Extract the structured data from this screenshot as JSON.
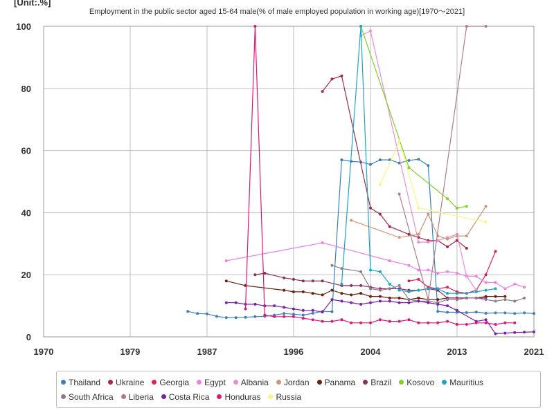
{
  "unit_label": "[Unit:.%]",
  "title": "Employment in the public sector aged 15-64 male(% of male employed population in working age)[1970～2021]",
  "chart_data": {
    "type": "line",
    "title": "Employment in the public sector aged 15-64 male(% of male employed population in working age)[1970～2021]",
    "unit": "[Unit:.%]",
    "xlim": [
      1970,
      2021
    ],
    "ylim": [
      0,
      100
    ],
    "x_ticks": [
      1970,
      1979,
      1987,
      1996,
      2004,
      2013,
      2021
    ],
    "y_ticks": [
      0,
      20,
      40,
      60,
      80,
      100
    ],
    "grid": true,
    "legend_position": "bottom",
    "series": [
      {
        "name": "Thailand",
        "color": "#3d7fba",
        "points": [
          [
            1985,
            8.2
          ],
          [
            1986,
            7.5
          ],
          [
            1987,
            7.4
          ],
          [
            1988,
            6.6
          ],
          [
            1989,
            6.2
          ],
          [
            1990,
            6.2
          ],
          [
            1991,
            6.3
          ],
          [
            1992,
            6.5
          ],
          [
            1993,
            6.6
          ],
          [
            1994,
            7.0
          ],
          [
            1995,
            7.5
          ],
          [
            1996,
            7.3
          ],
          [
            1997,
            7.0
          ],
          [
            1998,
            7.6
          ],
          [
            1999,
            8.2
          ],
          [
            2000,
            8.1
          ],
          [
            2001,
            57.0
          ],
          [
            2002,
            56.5
          ],
          [
            2003,
            56.3
          ],
          [
            2004,
            55.5
          ],
          [
            2005,
            57.0
          ],
          [
            2006,
            57.0
          ],
          [
            2007,
            56.0
          ],
          [
            2008,
            56.8
          ],
          [
            2009,
            57.2
          ],
          [
            2010,
            55.2
          ],
          [
            2011,
            8.2
          ],
          [
            2012,
            7.9
          ],
          [
            2013,
            7.9
          ],
          [
            2014,
            7.8
          ],
          [
            2015,
            8.0
          ],
          [
            2016,
            7.6
          ],
          [
            2017,
            7.7
          ],
          [
            2018,
            7.7
          ],
          [
            2019,
            7.5
          ],
          [
            2020,
            7.7
          ],
          [
            2021,
            7.5
          ]
        ]
      },
      {
        "name": "Ukraine",
        "color": "#9e2a4a",
        "points": [
          [
            1999,
            79.0
          ],
          [
            2000,
            83.0
          ],
          [
            2001,
            84.0
          ],
          [
            2004,
            41.5
          ],
          [
            2005,
            39.5
          ],
          [
            2006,
            35.5
          ],
          [
            2008,
            33.0
          ],
          [
            2009,
            32.0
          ],
          [
            2010,
            31.0
          ],
          [
            2011,
            31.0
          ],
          [
            2012,
            29.0
          ],
          [
            2013,
            31.0
          ],
          [
            2014,
            28.5
          ]
        ]
      },
      {
        "name": "Georgia",
        "color": "#e0214e",
        "points": [
          [
            2008,
            18.0
          ],
          [
            2009,
            18.5
          ],
          [
            2010,
            16.0
          ],
          [
            2011,
            15.5
          ],
          [
            2012,
            16.0
          ],
          [
            2013,
            14.5
          ],
          [
            2014,
            14.0
          ],
          [
            2015,
            15.0
          ],
          [
            2016,
            20.0
          ],
          [
            2017,
            27.5
          ]
        ]
      },
      {
        "name": "Egypt",
        "color": "#f07ee8",
        "points": [
          [
            1989,
            24.5
          ],
          [
            1999,
            30.3
          ],
          [
            2006,
            24.5
          ],
          [
            2008,
            23.0
          ],
          [
            2009,
            21.5
          ],
          [
            2010,
            21.5
          ],
          [
            2011,
            20.5
          ],
          [
            2012,
            21.0
          ],
          [
            2013,
            20.5
          ],
          [
            2014,
            19.5
          ],
          [
            2015,
            19.5
          ],
          [
            2016,
            17.5
          ],
          [
            2017,
            17.5
          ],
          [
            2018,
            15.5
          ],
          [
            2019,
            17.0
          ],
          [
            2020,
            16.0
          ]
        ]
      },
      {
        "name": "Albania",
        "color": "#e88ed0",
        "points": [
          [
            2003,
            97.0
          ],
          [
            2004,
            98.5
          ],
          [
            2009,
            30.5
          ],
          [
            2010,
            30.5
          ],
          [
            2011,
            31.0
          ],
          [
            2012,
            32.0
          ],
          [
            2013,
            33.0
          ],
          [
            2014,
            19.5
          ],
          [
            2015,
            15.0
          ]
        ]
      },
      {
        "name": "Jordan",
        "color": "#d39470",
        "points": [
          [
            2002,
            37.5
          ],
          [
            2007,
            32.0
          ],
          [
            2009,
            33.0
          ],
          [
            2010,
            39.5
          ],
          [
            2011,
            32.5
          ],
          [
            2012,
            31.5
          ],
          [
            2013,
            32.5
          ],
          [
            2014,
            32.5
          ],
          [
            2016,
            42.0
          ]
        ]
      },
      {
        "name": "Panama",
        "color": "#6b1f10",
        "points": [
          [
            1989,
            18.0
          ],
          [
            1991,
            16.5
          ],
          [
            1995,
            15.0
          ],
          [
            1996,
            14.5
          ],
          [
            1997,
            14.5
          ],
          [
            1998,
            14.0
          ],
          [
            1999,
            13.5
          ],
          [
            2000,
            15.0
          ],
          [
            2001,
            14.0
          ],
          [
            2002,
            13.5
          ],
          [
            2003,
            14.0
          ],
          [
            2004,
            13.0
          ],
          [
            2005,
            13.0
          ],
          [
            2006,
            12.5
          ],
          [
            2007,
            12.5
          ],
          [
            2008,
            12.0
          ],
          [
            2009,
            12.5
          ],
          [
            2010,
            12.0
          ],
          [
            2011,
            12.0
          ],
          [
            2012,
            12.5
          ],
          [
            2013,
            12.5
          ],
          [
            2014,
            12.5
          ],
          [
            2015,
            12.5
          ],
          [
            2016,
            13.0
          ],
          [
            2017,
            13.0
          ],
          [
            2018,
            13.0
          ]
        ]
      },
      {
        "name": "Brazil",
        "color": "#8a2e5a",
        "points": [
          [
            1992,
            20.0
          ],
          [
            1993,
            20.5
          ],
          [
            1995,
            19.0
          ],
          [
            1996,
            18.5
          ],
          [
            1997,
            18.0
          ],
          [
            1998,
            18.0
          ],
          [
            1999,
            18.0
          ],
          [
            2001,
            16.5
          ],
          [
            2002,
            16.5
          ],
          [
            2003,
            16.5
          ],
          [
            2004,
            16.0
          ],
          [
            2005,
            15.5
          ],
          [
            2006,
            15.5
          ],
          [
            2007,
            15.5
          ],
          [
            2008,
            15.0
          ],
          [
            2009,
            15.0
          ],
          [
            2010,
            15.5
          ],
          [
            2011,
            15.0
          ],
          [
            2012,
            12.5
          ],
          [
            2013,
            12.5
          ],
          [
            2014,
            12.5
          ],
          [
            2015,
            12.5
          ],
          [
            2016,
            12.5
          ]
        ]
      },
      {
        "name": "Kosovo",
        "color": "#7ed321",
        "points": [
          [
            2003,
            100.0
          ],
          [
            2008,
            54.5
          ],
          [
            2012,
            44.5
          ],
          [
            2013,
            41.5
          ],
          [
            2014,
            42.0
          ]
        ]
      },
      {
        "name": "Mauritius",
        "color": "#1aa5c8",
        "points": [
          [
            2001,
            17.0
          ],
          [
            2003,
            100.0
          ],
          [
            2004,
            21.5
          ],
          [
            2005,
            21.0
          ],
          [
            2006,
            17.0
          ],
          [
            2007,
            15.0
          ],
          [
            2008,
            14.5
          ],
          [
            2009,
            15.0
          ],
          [
            2010,
            15.5
          ],
          [
            2011,
            15.5
          ],
          [
            2012,
            14.0
          ],
          [
            2013,
            14.0
          ],
          [
            2014,
            14.0
          ],
          [
            2015,
            14.5
          ],
          [
            2016,
            15.0
          ],
          [
            2017,
            15.5
          ]
        ]
      },
      {
        "name": "South Africa",
        "color": "#8c7a92",
        "points": [
          [
            2000,
            23.0
          ],
          [
            2001,
            22.0
          ],
          [
            2003,
            21.0
          ],
          [
            2004,
            15.5
          ],
          [
            2005,
            15.0
          ],
          [
            2006,
            15.5
          ],
          [
            2007,
            16.5
          ],
          [
            2008,
            12.0
          ],
          [
            2009,
            11.5
          ],
          [
            2010,
            11.5
          ],
          [
            2011,
            11.0
          ],
          [
            2012,
            12.0
          ],
          [
            2013,
            12.0
          ],
          [
            2014,
            12.5
          ],
          [
            2015,
            12.5
          ],
          [
            2016,
            12.0
          ],
          [
            2017,
            11.5
          ],
          [
            2018,
            12.0
          ],
          [
            2019,
            11.5
          ],
          [
            2020,
            12.5
          ]
        ]
      },
      {
        "name": "Liberia",
        "color": "#b07a86",
        "points": [
          [
            2007,
            46.0
          ],
          [
            2010,
            12.0
          ],
          [
            2014,
            100.0
          ],
          [
            2016,
            100.0
          ]
        ]
      },
      {
        "name": "Costa Rica",
        "color": "#7a1fa8",
        "points": [
          [
            1989,
            11.0
          ],
          [
            1990,
            11.0
          ],
          [
            1991,
            10.5
          ],
          [
            1992,
            10.5
          ],
          [
            1993,
            10.0
          ],
          [
            1994,
            10.0
          ],
          [
            1995,
            9.5
          ],
          [
            1996,
            9.0
          ],
          [
            1997,
            8.5
          ],
          [
            1998,
            8.5
          ],
          [
            1999,
            8.0
          ],
          [
            2000,
            12.0
          ],
          [
            2001,
            11.5
          ],
          [
            2002,
            11.0
          ],
          [
            2003,
            10.5
          ],
          [
            2004,
            11.0
          ],
          [
            2005,
            11.5
          ],
          [
            2006,
            11.5
          ],
          [
            2007,
            11.0
          ],
          [
            2008,
            11.0
          ],
          [
            2009,
            11.5
          ],
          [
            2010,
            11.0
          ],
          [
            2011,
            10.5
          ],
          [
            2012,
            10.0
          ],
          [
            2013,
            8.5
          ],
          [
            2015,
            5.0
          ],
          [
            2016,
            5.5
          ],
          [
            2017,
            1.0
          ],
          [
            2018,
            1.2
          ],
          [
            2019,
            1.4
          ],
          [
            2020,
            1.5
          ],
          [
            2021,
            1.6
          ]
        ]
      },
      {
        "name": "Honduras",
        "color": "#e0147a",
        "points": [
          [
            1991,
            9.0
          ],
          [
            1992,
            100.0
          ],
          [
            1993,
            7.0
          ],
          [
            1994,
            6.5
          ],
          [
            1995,
            6.5
          ],
          [
            1996,
            6.5
          ],
          [
            1997,
            6.0
          ],
          [
            1998,
            5.5
          ],
          [
            1999,
            5.0
          ],
          [
            2000,
            5.0
          ],
          [
            2001,
            5.5
          ],
          [
            2002,
            4.5
          ],
          [
            2003,
            4.5
          ],
          [
            2004,
            4.5
          ],
          [
            2005,
            5.5
          ],
          [
            2006,
            5.0
          ],
          [
            2007,
            5.0
          ],
          [
            2008,
            5.5
          ],
          [
            2009,
            4.5
          ],
          [
            2010,
            4.5
          ],
          [
            2011,
            4.5
          ],
          [
            2012,
            5.0
          ],
          [
            2013,
            4.0
          ],
          [
            2014,
            4.0
          ],
          [
            2015,
            4.5
          ],
          [
            2016,
            4.5
          ],
          [
            2017,
            4.0
          ],
          [
            2018,
            4.5
          ],
          [
            2019,
            4.5
          ]
        ]
      },
      {
        "name": "Russia",
        "color": "#f7f77a",
        "points": [
          [
            2005,
            49.0
          ],
          [
            2007,
            63.0
          ],
          [
            2009,
            41.5
          ],
          [
            2016,
            37.0
          ]
        ]
      }
    ]
  }
}
